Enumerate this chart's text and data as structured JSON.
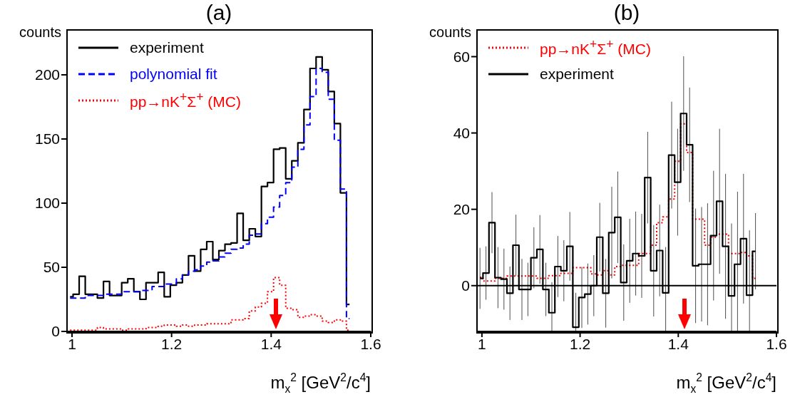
{
  "chart_data": [
    {
      "type": "step",
      "title": "(a)",
      "xlabel": "m$_{x}$$^{2}$ [GeV$^{2}$/c$^{4}$]",
      "ylabel": "counts",
      "legend": "top left",
      "xlim": [
        0.99,
        1.6
      ],
      "xticks": [
        1,
        1.2,
        1.4,
        1.6
      ],
      "ylim": [
        0,
        235
      ],
      "yticks": [
        0,
        50,
        100,
        150,
        200
      ],
      "x": [
        0.9961,
        1.0083,
        1.0205,
        1.0327,
        1.0449,
        1.0571,
        1.0693,
        1.0815,
        1.0937,
        1.1059,
        1.1181,
        1.1303,
        1.1425,
        1.1547,
        1.1669,
        1.1791,
        1.1913,
        1.2035,
        1.2157,
        1.2279,
        1.2401,
        1.2523,
        1.2645,
        1.2767,
        1.2889,
        1.3011,
        1.3133,
        1.3255,
        1.3377,
        1.3499,
        1.3621,
        1.3743,
        1.3865,
        1.3987,
        1.4109,
        1.4231,
        1.4353,
        1.4475,
        1.4597,
        1.4719,
        1.4841,
        1.4963,
        1.5085,
        1.5207,
        1.5329,
        1.5451,
        1.5573
      ],
      "series": [
        {
          "name": "experiment",
          "color": "#000000",
          "line_style": "solid",
          "values": [
            27,
            29,
            43,
            29,
            29,
            26,
            39,
            28,
            28,
            38,
            41,
            31,
            25,
            38,
            38,
            46,
            27,
            36,
            38,
            44,
            59,
            47,
            64,
            70,
            56,
            63,
            68,
            69,
            92,
            71,
            80,
            74,
            113,
            116,
            142,
            143,
            119,
            133,
            147,
            173,
            205,
            214,
            204,
            187,
            162,
            108,
            21
          ]
        },
        {
          "name": "polynomial fit",
          "color": "#0000ff",
          "line_style": "dashed",
          "values": [
            26,
            26,
            26,
            28,
            28,
            28,
            29,
            29,
            29,
            31,
            31,
            31,
            32,
            32,
            35,
            35,
            37,
            37,
            41,
            44,
            47,
            48,
            51,
            54,
            55,
            58,
            61,
            64,
            65,
            68,
            75,
            76,
            84,
            89,
            97,
            106,
            116,
            128,
            142,
            161,
            183,
            205,
            202,
            181,
            149,
            111,
            10
          ]
        },
        {
          "name": "pp→nK$^{+}$Σ$^{+}$ (MC)",
          "color": "#ff0000",
          "line_style": "dotted",
          "values": [
            1,
            1,
            1,
            1,
            1,
            3,
            2,
            2,
            2,
            1,
            2,
            2,
            2,
            3,
            3,
            4,
            5,
            5,
            4,
            5,
            4,
            5,
            5,
            6,
            6,
            6,
            6,
            9,
            9,
            10,
            16,
            19,
            22,
            31,
            42,
            36,
            18,
            17,
            11,
            12,
            13,
            12,
            8,
            7,
            9,
            8,
            1
          ]
        }
      ]
    },
    {
      "type": "step",
      "title": "(b)",
      "xlabel": "m$_{x}$$^{2}$ [GeV$^{2}$/c$^{4}$]",
      "ylabel": "counts",
      "legend": "top left",
      "xlim": [
        0.99,
        1.6
      ],
      "xticks": [
        1,
        1.2,
        1.4,
        1.6
      ],
      "ylim": [
        -12,
        67
      ],
      "yticks": [
        0,
        20,
        40,
        60
      ],
      "ref_lines": [
        {
          "axis": "y",
          "value": 0,
          "color": "#000000"
        }
      ],
      "x": [
        0.9961,
        1.0083,
        1.0205,
        1.0327,
        1.0449,
        1.0571,
        1.0693,
        1.0815,
        1.0937,
        1.1059,
        1.1181,
        1.1303,
        1.1425,
        1.1547,
        1.1669,
        1.1791,
        1.1913,
        1.2035,
        1.2157,
        1.2279,
        1.2401,
        1.2523,
        1.2645,
        1.2767,
        1.2889,
        1.3011,
        1.3133,
        1.3255,
        1.3377,
        1.3499,
        1.3621,
        1.3743,
        1.3865,
        1.3987,
        1.4109,
        1.4231,
        1.4353,
        1.4475,
        1.4597,
        1.4719,
        1.4841,
        1.4963,
        1.5085,
        1.5207,
        1.5329,
        1.5451,
        1.5573
      ],
      "series": [
        {
          "name": "pp→nK$^{+}$Σ$^{+}$ (MC)",
          "color": "#ff0000",
          "line_style": "dotted",
          "values": [
            2.2,
            1.2,
            1.2,
            1.9,
            1.9,
            2.5,
            2.5,
            2.5,
            2.5,
            2.5,
            1.9,
            1.9,
            2.6,
            2.6,
            3.2,
            3.2,
            4.7,
            4.7,
            4.7,
            3.1,
            2.8,
            3.9,
            2.8,
            5.0,
            5.3,
            5.3,
            5.3,
            8.4,
            8.4,
            10.6,
            16.5,
            18.0,
            22.7,
            32.6,
            42.4,
            34.9,
            17.4,
            17.4,
            10.6,
            12.7,
            13.5,
            13.5,
            8.4,
            8.4,
            8.7,
            7.8,
            1.9
          ]
        },
        {
          "name": "experiment",
          "color": "#000000",
          "line_style": "solid",
          "values": [
            1.9,
            3.3,
            16.5,
            2.1,
            1.7,
            -2,
            10.6,
            -1,
            -1,
            7.3,
            9.5,
            -1,
            -7.1,
            5.0,
            3.9,
            10.3,
            -10.9,
            -3.1,
            -2.2,
            0,
            12.7,
            -2,
            13.9,
            17.9,
            0.8,
            6.5,
            8.4,
            7.8,
            28.3,
            3.9,
            9.2,
            -1.9,
            34.2,
            27.1,
            45.1,
            36.9,
            5.2,
            5.6,
            5.6,
            13.1,
            22.1,
            10.3,
            -2.7,
            5.6,
            12.3,
            -2.5,
            9.0
          ],
          "errors": [
            [
              -6.1,
              9.9
            ],
            [
              -3.7,
              10.3
            ],
            [
              8.5,
              24.5
            ],
            [
              -5.9,
              10.1
            ],
            [
              -6.3,
              9.7
            ],
            [
              -9,
              5
            ],
            [
              2.6,
              18.6
            ],
            [
              -9,
              7
            ],
            [
              -8,
              6
            ],
            [
              -0.7,
              15.3
            ],
            [
              0.5,
              18.5
            ],
            [
              -8,
              6
            ],
            [
              -12,
              0.9
            ],
            [
              -3,
              13
            ],
            [
              -4.1,
              11.9
            ],
            [
              1.3,
              19.3
            ],
            [
              -12,
              -1.9
            ],
            [
              -11.1,
              4.9
            ],
            [
              -10.2,
              5.8
            ],
            [
              -8,
              8
            ],
            [
              3.7,
              21.7
            ],
            [
              -11,
              7
            ],
            [
              1.9,
              25.9
            ],
            [
              5.9,
              29.9
            ],
            [
              -9.2,
              10.8
            ],
            [
              -4.5,
              17.5
            ],
            [
              -2.6,
              19.4
            ],
            [
              -3.2,
              18.8
            ],
            [
              16.3,
              40.3
            ],
            [
              -8.1,
              15.9
            ],
            [
              -2.8,
              21.2
            ],
            [
              -12,
              10.1
            ],
            [
              20.2,
              48.2
            ],
            [
              13.1,
              41.1
            ],
            [
              30.1,
              60.1
            ],
            [
              21.9,
              51.9
            ],
            [
              -9.8,
              20.2
            ],
            [
              -9.4,
              20.6
            ],
            [
              -10.4,
              21.6
            ],
            [
              -3.9,
              30.1
            ],
            [
              3.1,
              41.1
            ],
            [
              -8.7,
              29.3
            ],
            [
              -12,
              16.3
            ],
            [
              -12,
              24.6
            ],
            [
              -4.7,
              29.3
            ],
            [
              -12,
              14.5
            ],
            [
              -1,
              19
            ]
          ]
        }
      ]
    }
  ]
}
